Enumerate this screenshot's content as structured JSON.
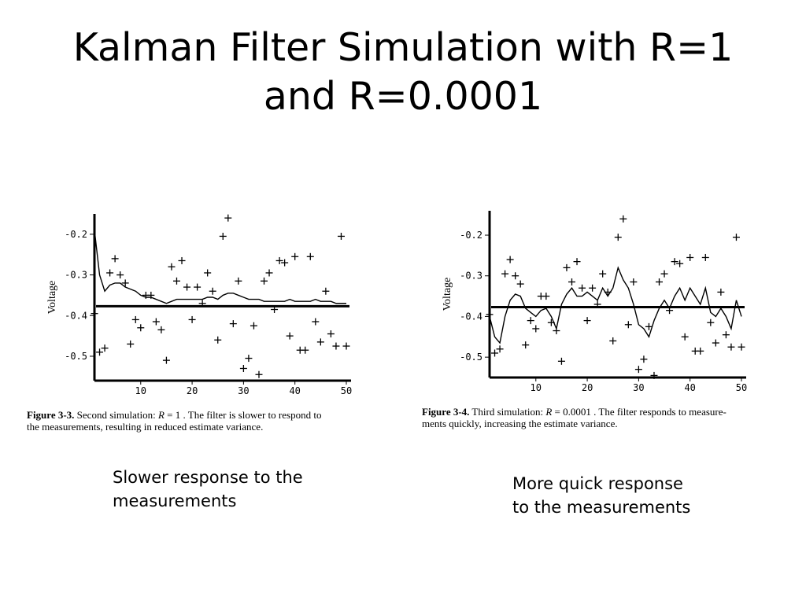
{
  "slide": {
    "title_line1": "Kalman Filter Simulation with R=1",
    "title_line2": "and R=0.0001"
  },
  "notes": {
    "left_line1": "Slower response to the",
    "left_line2": "measurements",
    "right_line1": "More quick response",
    "right_line2": "to the measurements"
  },
  "chart_data": [
    {
      "type": "scatter",
      "figure_label": "Figure 3-3.",
      "caption_pre": " Second simulation: ",
      "caption_eq": "R",
      "caption_post": " = 1 . The filter is slower to respond to",
      "caption_line2": "the measurements, resulting in reduced estimate variance.",
      "ylabel": "Voltage",
      "xlabel": "",
      "xlim": [
        1,
        50
      ],
      "ylim": [
        -0.56,
        -0.15
      ],
      "x_ticks": [
        10,
        20,
        30,
        40,
        50
      ],
      "y_ticks": [
        -0.2,
        -0.3,
        -0.4,
        -0.5
      ],
      "y_tick_labels": [
        "-0.2",
        "-0.3",
        "-0.4",
        "-0.5"
      ],
      "x_tick_labels": [
        "10",
        "20",
        "30",
        "40",
        "50"
      ],
      "grid": false,
      "series": [
        {
          "kind": "measurements",
          "marker": "+",
          "x": [
            1,
            2,
            3,
            4,
            5,
            6,
            7,
            8,
            9,
            10,
            11,
            12,
            13,
            14,
            15,
            16,
            17,
            18,
            19,
            20,
            21,
            22,
            23,
            24,
            25,
            26,
            27,
            28,
            29,
            30,
            31,
            32,
            33,
            34,
            35,
            36,
            37,
            38,
            39,
            40,
            41,
            42,
            43,
            44,
            45,
            46,
            47,
            48,
            49,
            50
          ],
          "y": [
            -0.395,
            -0.49,
            -0.48,
            -0.295,
            -0.26,
            -0.3,
            -0.32,
            -0.47,
            -0.41,
            -0.43,
            -0.35,
            -0.35,
            -0.415,
            -0.435,
            -0.51,
            -0.28,
            -0.315,
            -0.265,
            -0.33,
            -0.41,
            -0.33,
            -0.37,
            -0.295,
            -0.34,
            -0.46,
            -0.205,
            -0.16,
            -0.42,
            -0.315,
            -0.53,
            -0.505,
            -0.425,
            -0.545,
            -0.315,
            -0.295,
            -0.385,
            -0.265,
            -0.27,
            -0.45,
            -0.255,
            -0.485,
            -0.485,
            -0.255,
            -0.415,
            -0.465,
            -0.34,
            -0.445,
            -0.475,
            -0.205,
            -0.475
          ]
        },
        {
          "kind": "estimate",
          "x": [
            1,
            2,
            3,
            4,
            5,
            6,
            7,
            8,
            9,
            10,
            11,
            12,
            13,
            14,
            15,
            16,
            17,
            18,
            19,
            20,
            21,
            22,
            23,
            24,
            25,
            26,
            27,
            28,
            29,
            30,
            31,
            32,
            33,
            34,
            35,
            36,
            37,
            38,
            39,
            40,
            41,
            42,
            43,
            44,
            45,
            46,
            47,
            48,
            49,
            50
          ],
          "y": [
            -0.19,
            -0.3,
            -0.34,
            -0.325,
            -0.32,
            -0.32,
            -0.33,
            -0.335,
            -0.34,
            -0.35,
            -0.355,
            -0.355,
            -0.36,
            -0.365,
            -0.37,
            -0.365,
            -0.36,
            -0.36,
            -0.36,
            -0.36,
            -0.36,
            -0.36,
            -0.355,
            -0.355,
            -0.36,
            -0.35,
            -0.345,
            -0.345,
            -0.35,
            -0.355,
            -0.36,
            -0.36,
            -0.36,
            -0.365,
            -0.365,
            -0.365,
            -0.365,
            -0.365,
            -0.36,
            -0.365,
            -0.365,
            -0.365,
            -0.365,
            -0.36,
            -0.365,
            -0.365,
            -0.365,
            -0.37,
            -0.37,
            -0.37
          ]
        },
        {
          "kind": "true_value",
          "y": -0.377
        }
      ]
    },
    {
      "type": "scatter",
      "figure_label": "Figure 3-4.",
      "caption_pre": " Third simulation: ",
      "caption_eq": "R",
      "caption_post": " = 0.0001 . The filter responds to measure-",
      "caption_line2": "ments quickly, increasing the estimate variance.",
      "ylabel": "Voltage",
      "xlabel": "",
      "xlim": [
        1,
        50
      ],
      "ylim": [
        -0.55,
        -0.14
      ],
      "x_ticks": [
        10,
        20,
        30,
        40,
        50
      ],
      "y_ticks": [
        -0.2,
        -0.3,
        -0.4,
        -0.5
      ],
      "y_tick_labels": [
        "-0.2",
        "-0.3",
        "-0.4",
        "-0.5"
      ],
      "x_tick_labels": [
        "10",
        "20",
        "30",
        "40",
        "50"
      ],
      "grid": false,
      "series": [
        {
          "kind": "measurements",
          "marker": "+",
          "x": [
            1,
            2,
            3,
            4,
            5,
            6,
            7,
            8,
            9,
            10,
            11,
            12,
            13,
            14,
            15,
            16,
            17,
            18,
            19,
            20,
            21,
            22,
            23,
            24,
            25,
            26,
            27,
            28,
            29,
            30,
            31,
            32,
            33,
            34,
            35,
            36,
            37,
            38,
            39,
            40,
            41,
            42,
            43,
            44,
            45,
            46,
            47,
            48,
            49,
            50
          ],
          "y": [
            -0.395,
            -0.49,
            -0.48,
            -0.295,
            -0.26,
            -0.3,
            -0.32,
            -0.47,
            -0.41,
            -0.43,
            -0.35,
            -0.35,
            -0.415,
            -0.435,
            -0.51,
            -0.28,
            -0.315,
            -0.265,
            -0.33,
            -0.41,
            -0.33,
            -0.37,
            -0.295,
            -0.34,
            -0.46,
            -0.205,
            -0.16,
            -0.42,
            -0.315,
            -0.53,
            -0.505,
            -0.425,
            -0.545,
            -0.315,
            -0.295,
            -0.385,
            -0.265,
            -0.27,
            -0.45,
            -0.255,
            -0.485,
            -0.485,
            -0.255,
            -0.415,
            -0.465,
            -0.34,
            -0.445,
            -0.475,
            -0.205,
            -0.475
          ]
        },
        {
          "kind": "estimate",
          "x": [
            1,
            2,
            3,
            4,
            5,
            6,
            7,
            8,
            9,
            10,
            11,
            12,
            13,
            14,
            15,
            16,
            17,
            18,
            19,
            20,
            21,
            22,
            23,
            24,
            25,
            26,
            27,
            28,
            29,
            30,
            31,
            32,
            33,
            34,
            35,
            36,
            37,
            38,
            39,
            40,
            41,
            42,
            43,
            44,
            45,
            46,
            47,
            48,
            49,
            50
          ],
          "y": [
            -0.4,
            -0.45,
            -0.465,
            -0.4,
            -0.36,
            -0.345,
            -0.35,
            -0.38,
            -0.39,
            -0.4,
            -0.385,
            -0.38,
            -0.4,
            -0.43,
            -0.37,
            -0.345,
            -0.33,
            -0.35,
            -0.35,
            -0.34,
            -0.35,
            -0.36,
            -0.33,
            -0.35,
            -0.33,
            -0.28,
            -0.31,
            -0.33,
            -0.37,
            -0.42,
            -0.43,
            -0.45,
            -0.41,
            -0.38,
            -0.36,
            -0.38,
            -0.35,
            -0.33,
            -0.36,
            -0.33,
            -0.35,
            -0.37,
            -0.33,
            -0.39,
            -0.4,
            -0.38,
            -0.4,
            -0.43,
            -0.36,
            -0.4
          ]
        },
        {
          "kind": "true_value",
          "y": -0.377
        }
      ]
    }
  ]
}
